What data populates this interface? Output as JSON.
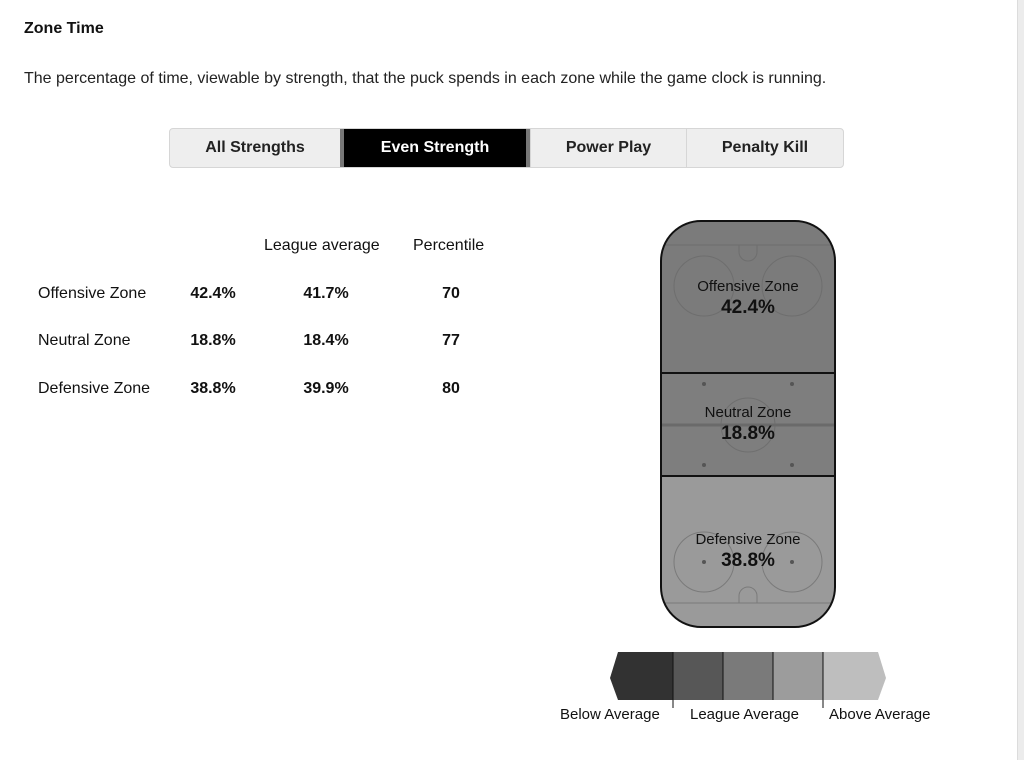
{
  "header": {
    "title": "Zone Time",
    "description": "The percentage of time, viewable by strength, that the puck spends in each zone while the game clock is running."
  },
  "tabs": [
    {
      "label": "All Strengths",
      "active": false
    },
    {
      "label": "Even Strength",
      "active": true
    },
    {
      "label": "Power Play",
      "active": false
    },
    {
      "label": "Penalty Kill",
      "active": false
    }
  ],
  "table": {
    "columns": [
      "",
      "",
      "League average",
      "Percentile"
    ],
    "rows": [
      {
        "zone": "Offensive Zone",
        "value": "42.4%",
        "league_average": "41.7%",
        "percentile": "70"
      },
      {
        "zone": "Neutral Zone",
        "value": "18.8%",
        "league_average": "18.4%",
        "percentile": "77"
      },
      {
        "zone": "Defensive Zone",
        "value": "38.8%",
        "league_average": "39.9%",
        "percentile": "80"
      }
    ]
  },
  "rink": {
    "offensive": {
      "label": "Offensive Zone",
      "value": "42.4%",
      "color": "#7b7b7b"
    },
    "neutral": {
      "label": "Neutral Zone",
      "value": "18.8%",
      "color": "#7e7e7e"
    },
    "defensive": {
      "label": "Defensive Zone",
      "value": "38.8%",
      "color": "#9a9a9a"
    }
  },
  "legend": {
    "labels": [
      "Below Average",
      "League Average",
      "Above Average"
    ],
    "colors": [
      "#323232",
      "#575757",
      "#7a7a7a",
      "#9c9c9c",
      "#bebebe"
    ]
  }
}
